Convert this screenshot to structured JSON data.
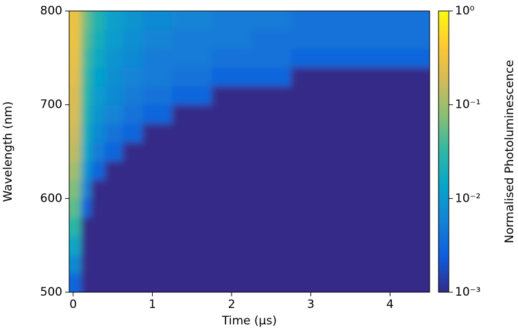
{
  "chart_data": {
    "type": "heatmap",
    "xlabel": "Time (μs)",
    "ylabel": "Wavelength (nm)",
    "colorbar_label": "Normalised Photoluminescence",
    "x": [
      0.05,
      0.15,
      0.3,
      0.5,
      0.75,
      1,
      1.5,
      2,
      2.5,
      3,
      3.5,
      4,
      4.35
    ],
    "y": [
      510,
      530,
      550,
      570,
      590,
      610,
      630,
      650,
      670,
      690,
      710,
      730,
      750,
      770,
      790
    ],
    "z": [
      [
        0.003,
        0.001,
        0.001,
        0.001,
        0.001,
        0.001,
        0.001,
        0.001,
        0.001,
        0.001,
        0.001,
        0.001,
        0.001
      ],
      [
        0.007,
        0.001,
        0.001,
        0.001,
        0.001,
        0.001,
        0.001,
        0.001,
        0.001,
        0.001,
        0.001,
        0.001,
        0.001
      ],
      [
        0.015,
        0.001,
        0.001,
        0.001,
        0.001,
        0.001,
        0.001,
        0.001,
        0.001,
        0.001,
        0.001,
        0.001,
        0.001
      ],
      [
        0.03,
        0.001,
        0.001,
        0.001,
        0.001,
        0.001,
        0.001,
        0.001,
        0.001,
        0.001,
        0.001,
        0.001,
        0.001
      ],
      [
        0.05,
        0.003,
        0.001,
        0.001,
        0.001,
        0.001,
        0.001,
        0.001,
        0.001,
        0.001,
        0.001,
        0.001,
        0.001
      ],
      [
        0.07,
        0.006,
        0.001,
        0.001,
        0.001,
        0.001,
        0.001,
        0.001,
        0.001,
        0.001,
        0.001,
        0.001,
        0.001
      ],
      [
        0.1,
        0.01,
        0.003,
        0.001,
        0.001,
        0.001,
        0.001,
        0.001,
        0.001,
        0.001,
        0.001,
        0.001,
        0.001
      ],
      [
        0.14,
        0.015,
        0.005,
        0.003,
        0.001,
        0.001,
        0.001,
        0.001,
        0.001,
        0.001,
        0.001,
        0.001,
        0.001
      ],
      [
        0.17,
        0.02,
        0.007,
        0.004,
        0.003,
        0.001,
        0.001,
        0.001,
        0.001,
        0.001,
        0.001,
        0.001,
        0.001
      ],
      [
        0.2,
        0.025,
        0.009,
        0.006,
        0.004,
        0.003,
        0.001,
        0.001,
        0.001,
        0.001,
        0.001,
        0.001,
        0.001
      ],
      [
        0.22,
        0.03,
        0.011,
        0.007,
        0.005,
        0.004,
        0.003,
        0.001,
        0.001,
        0.001,
        0.001,
        0.001,
        0.001
      ],
      [
        0.25,
        0.035,
        0.013,
        0.008,
        0.006,
        0.005,
        0.004,
        0.003,
        0.003,
        0.001,
        0.001,
        0.001,
        0.001
      ],
      [
        0.28,
        0.04,
        0.016,
        0.009,
        0.007,
        0.005,
        0.005,
        0.004,
        0.004,
        0.003,
        0.003,
        0.003,
        0.003
      ],
      [
        0.3,
        0.05,
        0.02,
        0.011,
        0.008,
        0.006,
        0.005,
        0.005,
        0.004,
        0.004,
        0.004,
        0.004,
        0.004
      ],
      [
        0.3,
        0.06,
        0.025,
        0.012,
        0.009,
        0.007,
        0.006,
        0.005,
        0.005,
        0.004,
        0.004,
        0.004,
        0.004
      ]
    ],
    "xlim": [
      -0.05,
      4.5
    ],
    "xticks": [
      0,
      1,
      2,
      3,
      4
    ],
    "ylim": [
      500,
      800
    ],
    "yticks": [
      500,
      600,
      700,
      800
    ],
    "clim": [
      0.001,
      1
    ],
    "color_scale": "log",
    "cticks": [
      {
        "value": 0.001,
        "label": "10⁻³"
      },
      {
        "value": 0.01,
        "label": "10⁻²"
      },
      {
        "value": 0.1,
        "label": "10⁻¹"
      },
      {
        "value": 1,
        "label": "10⁰"
      }
    ],
    "colormap": [
      "#352a87",
      "#0f5cdd",
      "#1481d6",
      "#06a4ca",
      "#2eb7a4",
      "#87bf77",
      "#d1bb59",
      "#fec832",
      "#f9fb0e"
    ]
  }
}
